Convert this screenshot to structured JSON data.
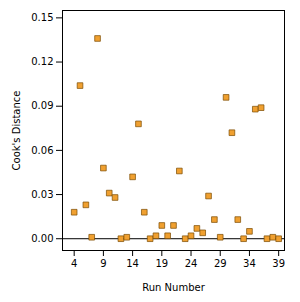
{
  "chart_data": {
    "type": "scatter",
    "x_label": "Run Number",
    "y_label": "Cook's Distance",
    "x": [
      4,
      5,
      6,
      7,
      8,
      9,
      10,
      11,
      12,
      13,
      14,
      15,
      16,
      17,
      18,
      19,
      20,
      21,
      22,
      23,
      24,
      25,
      26,
      27,
      28,
      29,
      30,
      31,
      32,
      33,
      34,
      35,
      36,
      37,
      38,
      39
    ],
    "values": [
      0.018,
      0.104,
      0.023,
      0.001,
      0.136,
      0.048,
      0.031,
      0.028,
      0.0,
      0.001,
      0.042,
      0.078,
      0.018,
      0.0,
      0.002,
      0.009,
      0.002,
      0.009,
      0.046,
      0.0,
      0.002,
      0.007,
      0.004,
      0.029,
      0.013,
      0.001,
      0.096,
      0.072,
      0.013,
      0.0,
      0.005,
      0.088,
      0.089,
      0.0,
      0.001,
      0.0
    ],
    "color": "#f0a030",
    "marker": "square",
    "baseline": 0,
    "xlim": [
      2,
      40
    ],
    "xticks": [
      4,
      9,
      14,
      19,
      24,
      29,
      34,
      39
    ],
    "ylim": [
      -0.008,
      0.155
    ],
    "yticks": [
      {
        "value": 0,
        "label": "0.00"
      },
      {
        "value": 0.03,
        "label": "0.03"
      },
      {
        "value": 0.06,
        "label": "0.06"
      },
      {
        "value": 0.09,
        "label": "0.09"
      },
      {
        "value": 0.12,
        "label": "0.12"
      },
      {
        "value": 0.15,
        "label": "0.15"
      }
    ],
    "grid": false
  }
}
